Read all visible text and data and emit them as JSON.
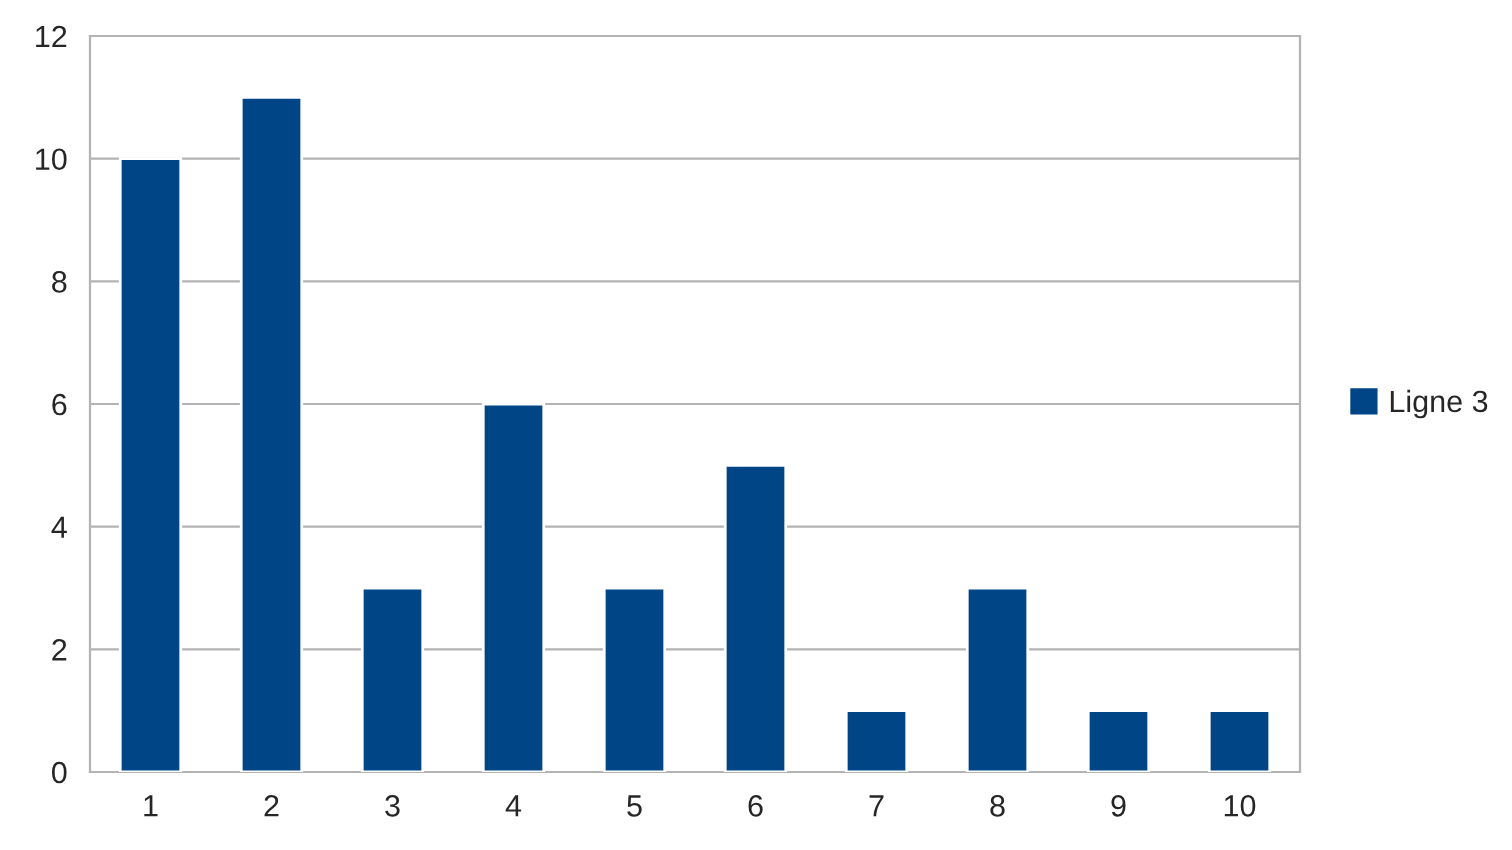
{
  "chart_data": {
    "type": "bar",
    "categories": [
      "1",
      "2",
      "3",
      "4",
      "5",
      "6",
      "7",
      "8",
      "9",
      "10"
    ],
    "series": [
      {
        "name": "Ligne 3",
        "color": "#004586",
        "values": [
          10,
          11,
          3,
          6,
          3,
          5,
          1,
          3,
          1,
          1
        ]
      }
    ],
    "ylim": [
      0,
      12
    ],
    "yticks": [
      0,
      2,
      4,
      6,
      8,
      10,
      12
    ],
    "grid": "y",
    "legend": "right"
  }
}
